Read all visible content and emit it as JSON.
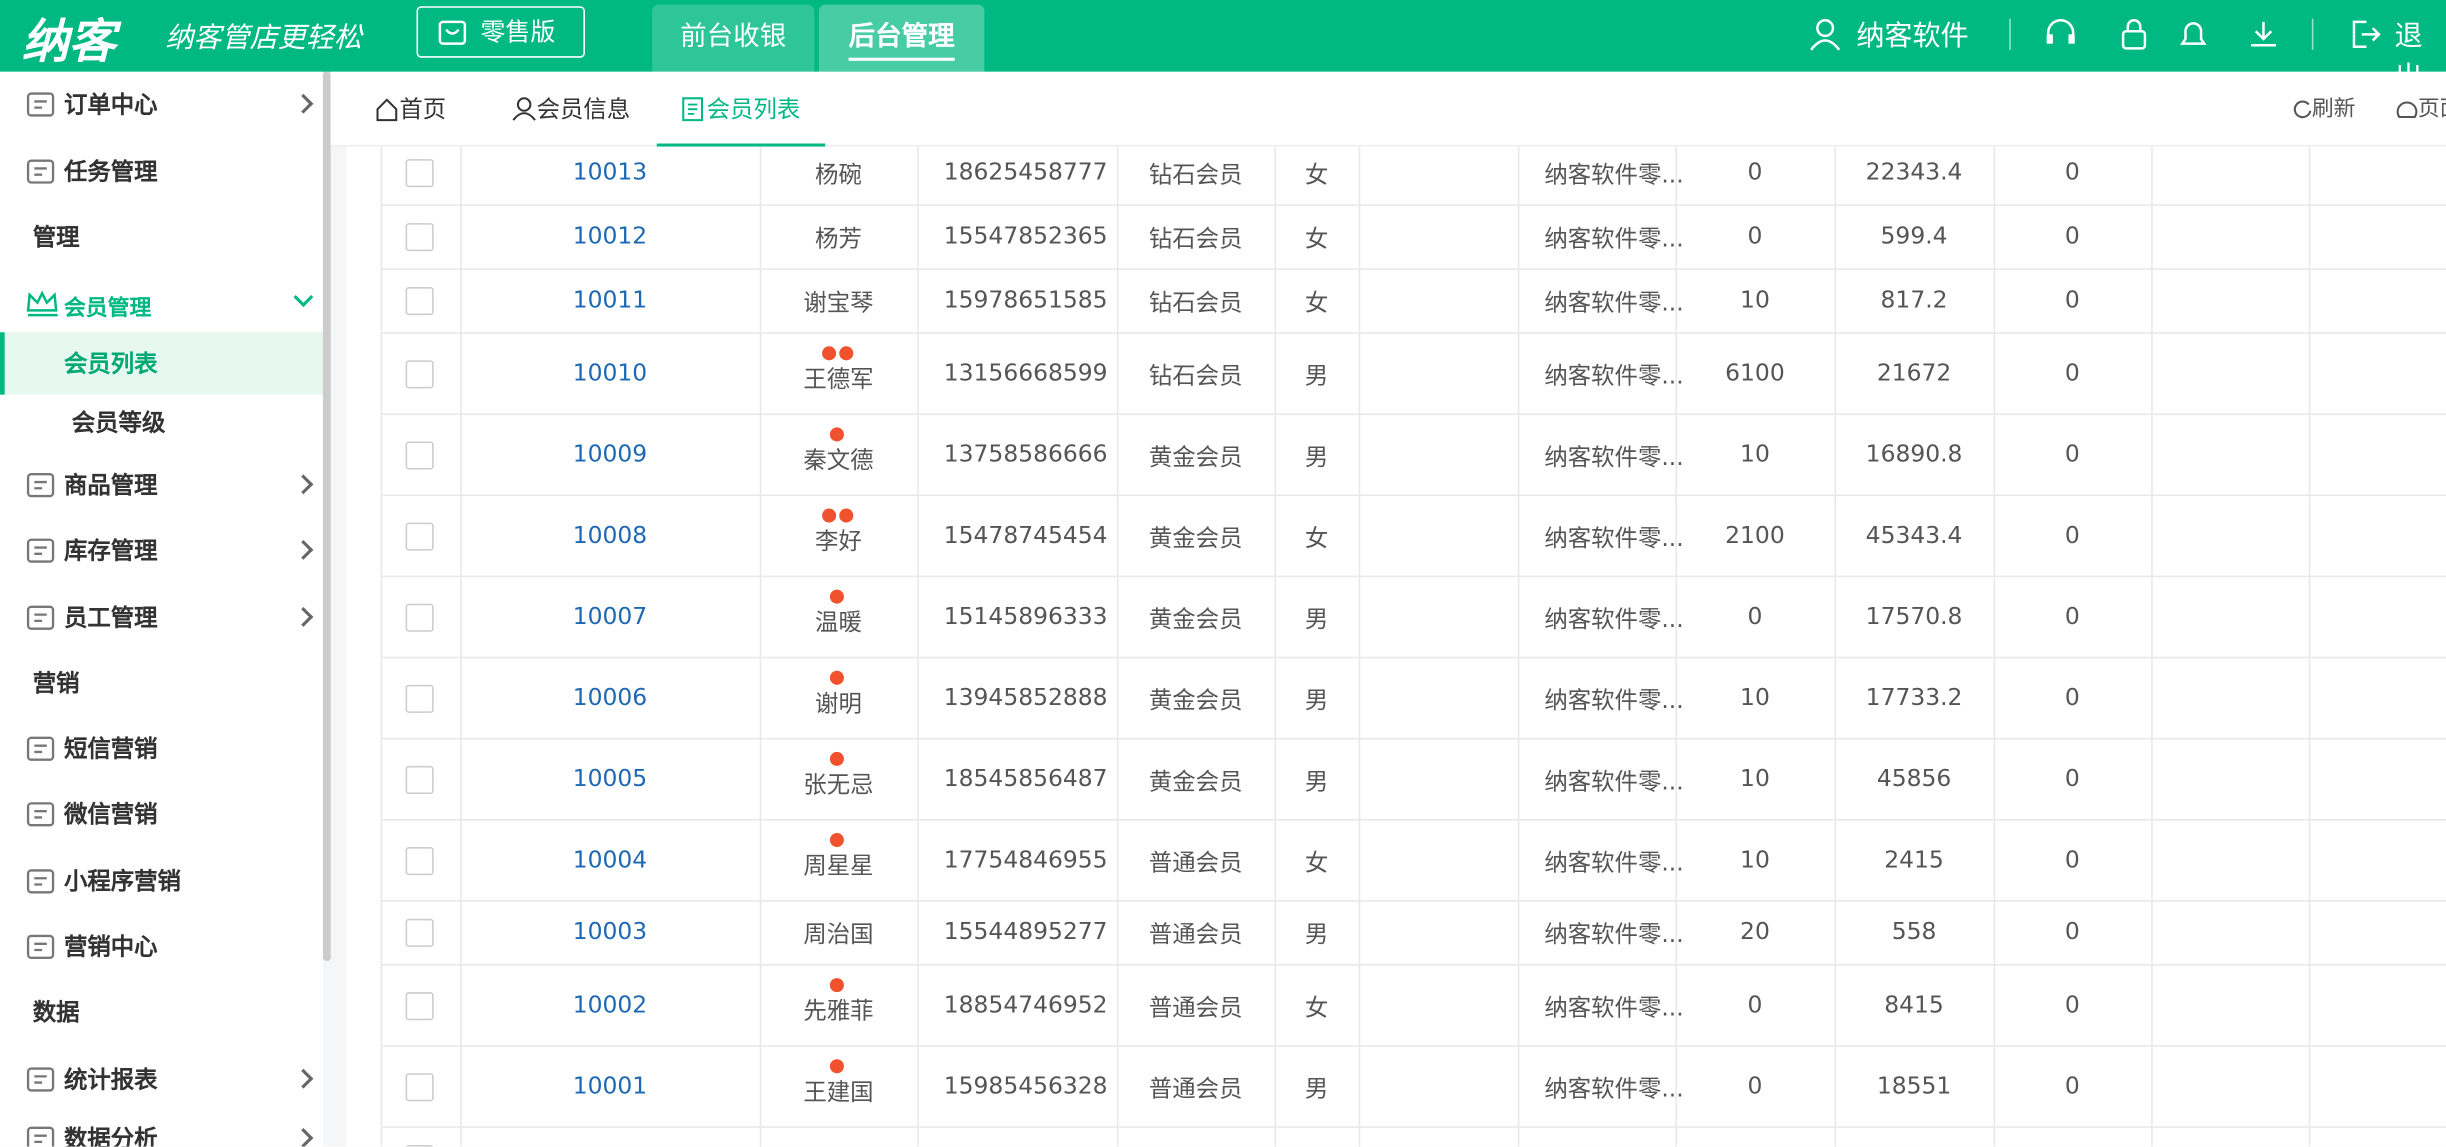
{
  "header": {
    "logo": "纳客",
    "slogan": "纳客管店更轻松",
    "edition": "零售版",
    "nav": [
      "前台收银",
      "后台管理"
    ],
    "user": "纳客软件",
    "logout": "退出"
  },
  "sidebar": {
    "items": [
      "订单中心",
      "任务管理",
      "管理",
      "会员管理",
      "会员列表",
      "会员等级",
      "商品管理",
      "库存管理",
      "员工管理",
      "营销",
      "短信营销",
      "微信营销",
      "小程序营销",
      "营销中心",
      "数据",
      "统计报表",
      "数据分析"
    ]
  },
  "tabs": [
    "首页",
    "会员信息",
    "会员列表"
  ],
  "actions": [
    "刷新",
    "页面"
  ],
  "table": {
    "rows": [
      {
        "cells": [
          "10013",
          "杨碗",
          "18625458777",
          "钻石会员",
          "女",
          "纳客软件零...",
          "0",
          "22343.4",
          "0"
        ],
        "dots": 0
      },
      {
        "cells": [
          "10012",
          "杨芳",
          "15547852365",
          "钻石会员",
          "女",
          "纳客软件零...",
          "0",
          "599.4",
          "0"
        ],
        "dots": 0
      },
      {
        "cells": [
          "10011",
          "谢宝琴",
          "15978651585",
          "钻石会员",
          "女",
          "纳客软件零...",
          "10",
          "817.2",
          "0"
        ],
        "dots": 0
      },
      {
        "cells": [
          "10010",
          "王德军",
          "13156668599",
          "钻石会员",
          "男",
          "纳客软件零...",
          "6100",
          "21672",
          "0"
        ],
        "dots": 2
      },
      {
        "cells": [
          "10009",
          "秦文德",
          "13758586666",
          "黄金会员",
          "男",
          "纳客软件零...",
          "10",
          "16890.8",
          "0"
        ],
        "dots": 1
      },
      {
        "cells": [
          "10008",
          "李好",
          "15478745454",
          "黄金会员",
          "女",
          "纳客软件零...",
          "2100",
          "45343.4",
          "0"
        ],
        "dots": 2
      },
      {
        "cells": [
          "10007",
          "温暖",
          "15145896333",
          "黄金会员",
          "男",
          "纳客软件零...",
          "0",
          "17570.8",
          "0"
        ],
        "dots": 1
      },
      {
        "cells": [
          "10006",
          "谢明",
          "13945852888",
          "黄金会员",
          "男",
          "纳客软件零...",
          "10",
          "17733.2",
          "0"
        ],
        "dots": 1
      },
      {
        "cells": [
          "10005",
          "张无忌",
          "18545856487",
          "黄金会员",
          "男",
          "纳客软件零...",
          "10",
          "45856",
          "0"
        ],
        "dots": 1
      },
      {
        "cells": [
          "10004",
          "周星星",
          "17754846955",
          "普通会员",
          "女",
          "纳客软件零...",
          "10",
          "2415",
          "0"
        ],
        "dots": 1
      },
      {
        "cells": [
          "10003",
          "周治国",
          "15544895277",
          "普通会员",
          "男",
          "纳客软件零...",
          "20",
          "558",
          "0"
        ],
        "dots": 0
      },
      {
        "cells": [
          "10002",
          "先雅菲",
          "18854746952",
          "普通会员",
          "女",
          "纳客软件零...",
          "0",
          "8415",
          "0"
        ],
        "dots": 1
      },
      {
        "cells": [
          "10001",
          "王建国",
          "15985456328",
          "普通会员",
          "男",
          "纳客软件零...",
          "0",
          "18551",
          "0"
        ],
        "dots": 1
      }
    ]
  }
}
